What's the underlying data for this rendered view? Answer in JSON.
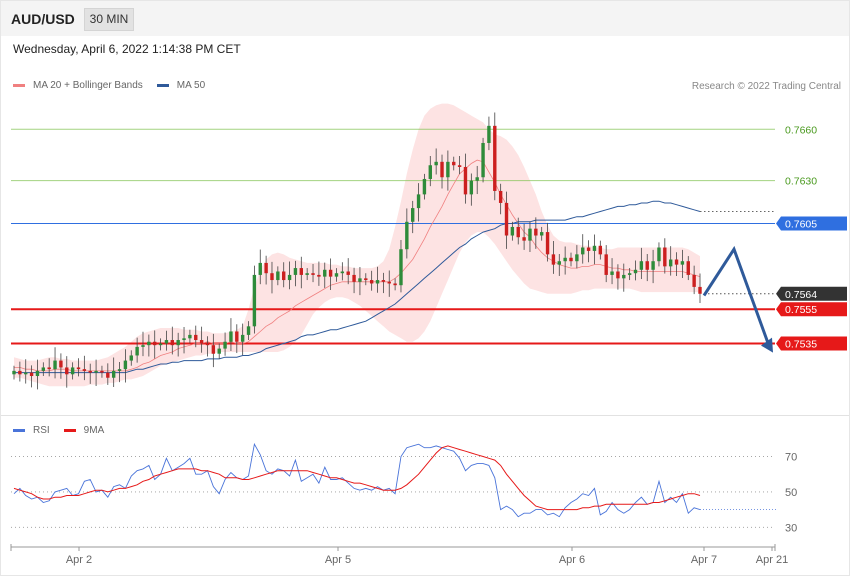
{
  "header": {
    "symbol": "AUD/USD",
    "timeframe": "30 MIN",
    "datetime": "Wednesday, April 6, 2022 1:14:38 PM CET"
  },
  "legend": {
    "ma20": "MA 20 + Bollinger Bands",
    "ma50": "MA 50",
    "credit": "Research © 2022 Trading Central",
    "rsi": "RSI",
    "ma9": "9MA"
  },
  "colors": {
    "ma20": "#f08080",
    "ma50": "#2f5a9a",
    "band_fill": "#fde3e3",
    "up_candle": "#2e8b3a",
    "down_candle": "#cc1f1f",
    "resistance_green": "#7cc04a",
    "pivot_blue": "#2f6fe0",
    "support_red": "#e61919",
    "rsi_line": "#4a74d9",
    "rsi_ma": "#e61919"
  },
  "chart_data": [
    {
      "type": "candlestick",
      "title": "AUD/USD 30 MIN",
      "x_ticks": [
        "Apr 2",
        "Apr 5",
        "Apr 6",
        "Apr 7",
        "Apr 21"
      ],
      "ylim": [
        0.7495,
        0.768
      ],
      "levels": [
        {
          "value": 0.766,
          "label": "0.7660",
          "kind": "resistance"
        },
        {
          "value": 0.763,
          "label": "0.7630",
          "kind": "resistance"
        },
        {
          "value": 0.7605,
          "label": "0.7605",
          "kind": "pivot"
        },
        {
          "value": 0.7564,
          "label": "0.7564",
          "kind": "last"
        },
        {
          "value": 0.7555,
          "label": "0.7555",
          "kind": "support"
        },
        {
          "value": 0.7535,
          "label": "0.7535",
          "kind": "support"
        }
      ],
      "forecast_path": [
        0.7563,
        0.759,
        0.7532
      ],
      "close": [
        0.7519,
        0.7517,
        0.7518,
        0.7516,
        0.7519,
        0.7521,
        0.752,
        0.7525,
        0.7521,
        0.7517,
        0.7521,
        0.752,
        0.7519,
        0.7518,
        0.7519,
        0.7518,
        0.7515,
        0.7519,
        0.752,
        0.7525,
        0.7528,
        0.7533,
        0.7534,
        0.7536,
        0.7534,
        0.7535,
        0.7537,
        0.7534,
        0.7537,
        0.7538,
        0.754,
        0.7537,
        0.7535,
        0.7534,
        0.7529,
        0.7532,
        0.7536,
        0.7542,
        0.7536,
        0.754,
        0.7545,
        0.7575,
        0.7582,
        0.7576,
        0.7572,
        0.7577,
        0.7572,
        0.7575,
        0.7579,
        0.7575,
        0.7576,
        0.7575,
        0.7574,
        0.7578,
        0.7574,
        0.7576,
        0.7577,
        0.7575,
        0.7571,
        0.7573,
        0.7572,
        0.757,
        0.7572,
        0.7571,
        0.757,
        0.7569,
        0.759,
        0.7606,
        0.7614,
        0.7622,
        0.7631,
        0.7639,
        0.7641,
        0.7632,
        0.7641,
        0.7639,
        0.7638,
        0.7622,
        0.763,
        0.7632,
        0.7652,
        0.7662,
        0.7624,
        0.7617,
        0.7598,
        0.7603,
        0.7597,
        0.7595,
        0.7602,
        0.7598,
        0.76,
        0.7587,
        0.7581,
        0.7583,
        0.7585,
        0.7583,
        0.7587,
        0.7591,
        0.7589,
        0.7592,
        0.7587,
        0.7575,
        0.7577,
        0.7573,
        0.7575,
        0.7576,
        0.7578,
        0.7583,
        0.7578,
        0.7583,
        0.7591,
        0.758,
        0.7584,
        0.7581,
        0.7583,
        0.7575,
        0.7568,
        0.7564
      ],
      "ma20": [
        0.7521,
        0.7521,
        0.752,
        0.752,
        0.7519,
        0.7519,
        0.7519,
        0.752,
        0.752,
        0.752,
        0.7519,
        0.7519,
        0.7519,
        0.7519,
        0.7519,
        0.7519,
        0.7519,
        0.7519,
        0.7519,
        0.7519,
        0.752,
        0.7521,
        0.7523,
        0.7524,
        0.7526,
        0.7528,
        0.7529,
        0.753,
        0.7532,
        0.7533,
        0.7534,
        0.7535,
        0.7535,
        0.7536,
        0.7535,
        0.7535,
        0.7535,
        0.7536,
        0.7535,
        0.7535,
        0.7536,
        0.7539,
        0.7542,
        0.7545,
        0.7547,
        0.755,
        0.7552,
        0.7554,
        0.7557,
        0.7559,
        0.7561,
        0.7563,
        0.7565,
        0.7567,
        0.7569,
        0.757,
        0.7571,
        0.7571,
        0.7571,
        0.7571,
        0.7571,
        0.7571,
        0.7571,
        0.7571,
        0.7571,
        0.7573,
        0.7576,
        0.758,
        0.7584,
        0.759,
        0.7596,
        0.7603,
        0.7609,
        0.7615,
        0.7622,
        0.7628,
        0.7634,
        0.7637,
        0.764,
        0.7642,
        0.7641,
        0.7635,
        0.7629,
        0.7622,
        0.7616,
        0.761,
        0.7605,
        0.76,
        0.7597,
        0.7592,
        0.7588,
        0.7585,
        0.7583,
        0.7581,
        0.758,
        0.7579,
        0.7579,
        0.758,
        0.758,
        0.7581,
        0.7581,
        0.758,
        0.7579,
        0.7579,
        0.7578,
        0.7578,
        0.7577,
        0.7577,
        0.7577,
        0.7577,
        0.7577,
        0.7577,
        0.7577,
        0.7577,
        0.7577,
        0.7576,
        0.7575,
        0.7574
      ],
      "bollinger_upper": [
        0.7527,
        0.7526,
        0.7525,
        0.7525,
        0.7525,
        0.7526,
        0.7527,
        0.7527,
        0.7526,
        0.7526,
        0.7525,
        0.7525,
        0.7525,
        0.7525,
        0.7525,
        0.7526,
        0.7527,
        0.7529,
        0.7531,
        0.7533,
        0.7536,
        0.7539,
        0.7541,
        0.7542,
        0.7543,
        0.7544,
        0.7544,
        0.7544,
        0.7544,
        0.7543,
        0.7543,
        0.7543,
        0.7542,
        0.7542,
        0.7541,
        0.7541,
        0.7541,
        0.7542,
        0.7543,
        0.7545,
        0.7555,
        0.7568,
        0.7578,
        0.7584,
        0.7587,
        0.7588,
        0.7587,
        0.7585,
        0.7584,
        0.7583,
        0.7582,
        0.7582,
        0.7582,
        0.7582,
        0.7581,
        0.7581,
        0.758,
        0.758,
        0.7579,
        0.7579,
        0.7579,
        0.7579,
        0.758,
        0.7583,
        0.759,
        0.7603,
        0.7618,
        0.7634,
        0.7648,
        0.766,
        0.7668,
        0.7672,
        0.7674,
        0.7675,
        0.7675,
        0.7674,
        0.7672,
        0.767,
        0.7668,
        0.7666,
        0.7664,
        0.766,
        0.7657,
        0.7656,
        0.7654,
        0.765,
        0.7645,
        0.7638,
        0.763,
        0.7622,
        0.7612,
        0.7604,
        0.7598,
        0.7595,
        0.7594,
        0.7594,
        0.7593,
        0.7592,
        0.7592,
        0.7591,
        0.7591,
        0.759,
        0.759,
        0.7591,
        0.7591,
        0.7591,
        0.7591,
        0.7591,
        0.7591,
        0.7591,
        0.7591,
        0.7591,
        0.7591,
        0.7591,
        0.7591,
        0.759,
        0.7588,
        0.7586
      ],
      "bollinger_lower": [
        0.7515,
        0.7515,
        0.7514,
        0.7513,
        0.7512,
        0.7511,
        0.751,
        0.751,
        0.751,
        0.751,
        0.751,
        0.751,
        0.751,
        0.7511,
        0.7511,
        0.7511,
        0.7512,
        0.7512,
        0.7513,
        0.7514,
        0.7514,
        0.7515,
        0.7516,
        0.7518,
        0.752,
        0.7522,
        0.7523,
        0.7524,
        0.7525,
        0.7526,
        0.7527,
        0.7528,
        0.7528,
        0.7529,
        0.7529,
        0.753,
        0.753,
        0.753,
        0.753,
        0.753,
        0.753,
        0.753,
        0.753,
        0.753,
        0.753,
        0.753,
        0.7531,
        0.7533,
        0.7536,
        0.754,
        0.7546,
        0.7552,
        0.7556,
        0.7559,
        0.7561,
        0.7562,
        0.7562,
        0.7561,
        0.7559,
        0.7557,
        0.7554,
        0.7551,
        0.7548,
        0.7545,
        0.7542,
        0.754,
        0.7538,
        0.7536,
        0.7536,
        0.7538,
        0.7542,
        0.7548,
        0.7556,
        0.7564,
        0.7572,
        0.758,
        0.7588,
        0.7594,
        0.7598,
        0.76,
        0.76,
        0.7597,
        0.7593,
        0.7588,
        0.7583,
        0.7578,
        0.7574,
        0.757,
        0.7567,
        0.7566,
        0.7565,
        0.7564,
        0.7564,
        0.7564,
        0.7564,
        0.7564,
        0.7565,
        0.7566,
        0.7566,
        0.7567,
        0.7567,
        0.7567,
        0.7567,
        0.7567,
        0.7567,
        0.7567,
        0.7566,
        0.7565,
        0.7565,
        0.7565,
        0.7565,
        0.7565,
        0.7565,
        0.7565,
        0.7565,
        0.7565,
        0.7565,
        0.7565
      ],
      "ma50": [
        0.7518,
        0.7518,
        0.7518,
        0.7518,
        0.7518,
        0.7518,
        0.7518,
        0.7518,
        0.7518,
        0.7518,
        0.7518,
        0.7518,
        0.7518,
        0.7518,
        0.7518,
        0.7518,
        0.7518,
        0.7518,
        0.7518,
        0.7518,
        0.7519,
        0.752,
        0.752,
        0.7521,
        0.7522,
        0.7523,
        0.7523,
        0.7524,
        0.7524,
        0.7525,
        0.7525,
        0.7525,
        0.7525,
        0.7526,
        0.7526,
        0.7526,
        0.7527,
        0.7527,
        0.7527,
        0.7528,
        0.7528,
        0.7529,
        0.753,
        0.7532,
        0.7533,
        0.7534,
        0.7535,
        0.7536,
        0.7537,
        0.7539,
        0.754,
        0.754,
        0.7541,
        0.7542,
        0.7543,
        0.7543,
        0.7544,
        0.7545,
        0.7546,
        0.7547,
        0.7548,
        0.755,
        0.7552,
        0.7554,
        0.7556,
        0.7558,
        0.7561,
        0.7564,
        0.7567,
        0.757,
        0.7573,
        0.7576,
        0.7579,
        0.7582,
        0.7585,
        0.7588,
        0.7591,
        0.7593,
        0.7596,
        0.7598,
        0.76,
        0.7601,
        0.7602,
        0.7604,
        0.7605,
        0.7605,
        0.7606,
        0.7606,
        0.7606,
        0.7607,
        0.7607,
        0.7607,
        0.7607,
        0.7607,
        0.7607,
        0.7608,
        0.7609,
        0.7609,
        0.761,
        0.7611,
        0.7612,
        0.7613,
        0.7614,
        0.7615,
        0.7615,
        0.7616,
        0.7616,
        0.7617,
        0.7617,
        0.7618,
        0.7618,
        0.7617,
        0.7617,
        0.7616,
        0.7615,
        0.7614,
        0.7613,
        0.7612
      ]
    },
    {
      "type": "line",
      "title": "RSI",
      "y_ticks": [
        70,
        50,
        30
      ],
      "ylim": [
        20,
        85
      ],
      "series": [
        {
          "name": "RSI",
          "values": [
            49,
            52,
            48,
            46,
            47,
            44,
            45,
            50,
            51,
            52,
            48,
            49,
            56,
            57,
            50,
            51,
            47,
            53,
            54,
            52,
            59,
            62,
            63,
            65,
            57,
            60,
            69,
            62,
            64,
            66,
            69,
            60,
            60,
            62,
            53,
            49,
            57,
            61,
            58,
            57,
            59,
            77,
            71,
            62,
            60,
            63,
            62,
            59,
            68,
            56,
            58,
            60,
            55,
            64,
            57,
            57,
            58,
            55,
            52,
            51,
            52,
            51,
            53,
            51,
            52,
            49,
            70,
            75,
            76,
            77,
            75,
            75,
            76,
            75,
            74,
            73,
            69,
            62,
            65,
            66,
            66,
            65,
            58,
            40,
            42,
            40,
            36,
            38,
            38,
            40,
            40,
            37,
            38,
            36,
            41,
            44,
            46,
            49,
            48,
            52,
            37,
            39,
            44,
            40,
            38,
            40,
            44,
            47,
            43,
            44,
            56,
            44,
            47,
            44,
            49,
            38,
            41,
            40
          ]
        },
        {
          "name": "9MA",
          "values": [
            52,
            51,
            50,
            49,
            47,
            46,
            46,
            47,
            47,
            48,
            48,
            48,
            49,
            50,
            51,
            51,
            50,
            51,
            52,
            52,
            53,
            54,
            56,
            57,
            59,
            60,
            61,
            62,
            63,
            63,
            63,
            63,
            62,
            62,
            61,
            60,
            58,
            58,
            58,
            57,
            57,
            58,
            59,
            60,
            61,
            62,
            62,
            62,
            62,
            62,
            62,
            61,
            60,
            59,
            58,
            58,
            57,
            56,
            55,
            55,
            54,
            53,
            52,
            51,
            51,
            51,
            52,
            54,
            57,
            60,
            64,
            68,
            72,
            75,
            76,
            75,
            74,
            73,
            72,
            71,
            70,
            69,
            68,
            65,
            60,
            56,
            52,
            48,
            45,
            42,
            41,
            40,
            40,
            40,
            40,
            40,
            40,
            41,
            41,
            42,
            42,
            43,
            43,
            43,
            43,
            43,
            43,
            43,
            43,
            44,
            44,
            45,
            46,
            47,
            48,
            49,
            49,
            48
          ]
        }
      ]
    }
  ]
}
